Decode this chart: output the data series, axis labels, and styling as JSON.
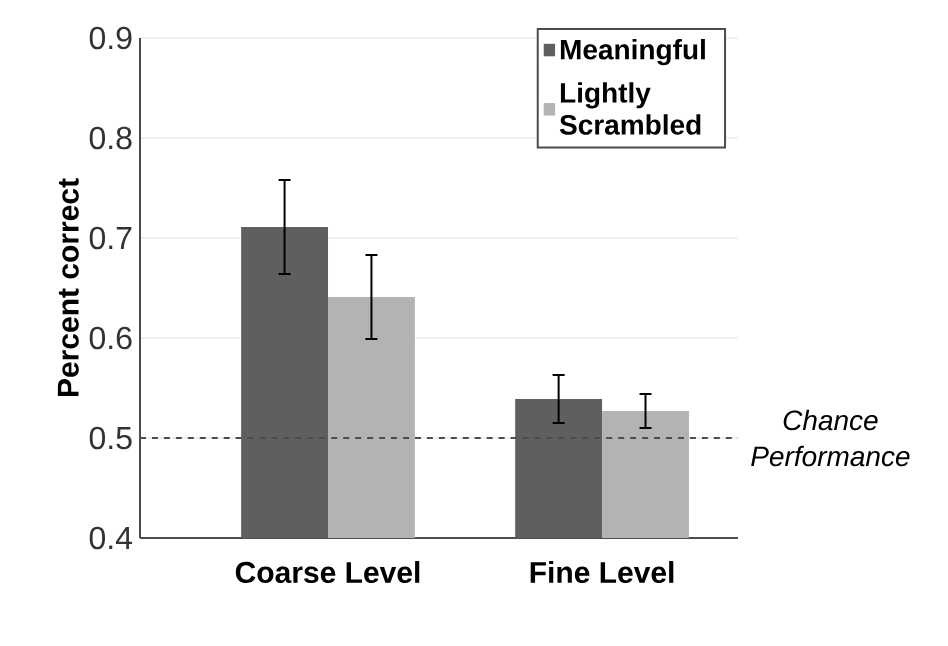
{
  "chart_data": {
    "type": "bar",
    "ylabel": "Percent correct",
    "categories": [
      "Coarse Level",
      "Fine Level"
    ],
    "series": [
      {
        "name": "Meaningful",
        "color": "#5f5f5f",
        "values": [
          0.711,
          0.539
        ],
        "errors": [
          0.047,
          0.024
        ]
      },
      {
        "name": "Lightly Scrambled",
        "color": "#b3b3b3",
        "values": [
          0.641,
          0.527
        ],
        "errors": [
          0.042,
          0.017
        ]
      }
    ],
    "ylim": [
      0.4,
      0.9
    ],
    "yticks": [
      0.4,
      0.5,
      0.6,
      0.7,
      0.8,
      0.9
    ],
    "grid": "y",
    "legend": "top right",
    "ref_lines": [
      {
        "axis": "y",
        "value": 0.5,
        "label": "Chance Performance",
        "line_style": "dashed"
      }
    ]
  }
}
